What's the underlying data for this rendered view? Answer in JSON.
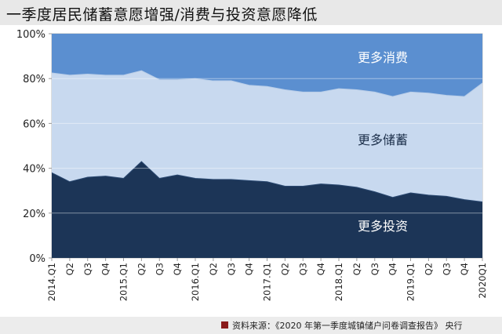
{
  "header": {
    "title": "一季度居民储蓄意愿增强/消费与投资意愿降低"
  },
  "footer": {
    "source": "资料来源：《2020 年第一季度城镇储户问卷调查报告》 央行"
  },
  "colors": {
    "consume": "#5b8fd0",
    "save": "#c8d9ef",
    "invest": "#1c3557",
    "label_on_light": "#1c2f4a",
    "label_on_dark": "#ffffff"
  },
  "chart_data": {
    "type": "area",
    "stacked": true,
    "categories": [
      "2014.Q1",
      "Q2",
      "Q3",
      "Q4",
      "2015.Q1",
      "Q2",
      "Q3",
      "Q4",
      "2016.Q1",
      "Q2",
      "Q3",
      "Q4",
      "2017.Q1",
      "Q2",
      "Q3",
      "Q4",
      "2018.Q1",
      "Q2",
      "Q3",
      "Q4",
      "2019.Q1",
      "Q2",
      "Q3",
      "Q4",
      "2020Q1"
    ],
    "ylim": [
      0,
      100
    ],
    "yticks": [
      "0%",
      "20%",
      "40%",
      "60%",
      "80%",
      "100%"
    ],
    "ytick_values": [
      0,
      20,
      40,
      60,
      80,
      100
    ],
    "grid": true,
    "series": [
      {
        "name": "更多投资",
        "values": [
          38,
          34,
          36,
          36.5,
          35.5,
          43,
          35.5,
          37,
          35.5,
          35,
          35,
          34.5,
          34,
          32,
          32,
          33,
          32.5,
          31.5,
          29.5,
          27,
          29,
          28,
          27.5,
          26,
          25
        ]
      },
      {
        "name": "更多储蓄",
        "values": [
          44.5,
          47.5,
          46,
          45,
          46,
          40.5,
          44,
          42.5,
          44.5,
          44,
          44,
          42.5,
          42.5,
          43,
          42,
          41,
          43,
          43.5,
          44.5,
          45,
          45,
          45.5,
          45,
          46,
          53
        ]
      },
      {
        "name": "更多消费",
        "values": [
          17.5,
          18.5,
          18,
          18.5,
          18.5,
          16.5,
          20.5,
          20.5,
          20,
          21,
          21,
          23,
          23.5,
          25,
          26,
          26,
          24.5,
          25,
          26,
          28,
          26,
          26.5,
          27.5,
          28,
          22
        ]
      }
    ]
  }
}
